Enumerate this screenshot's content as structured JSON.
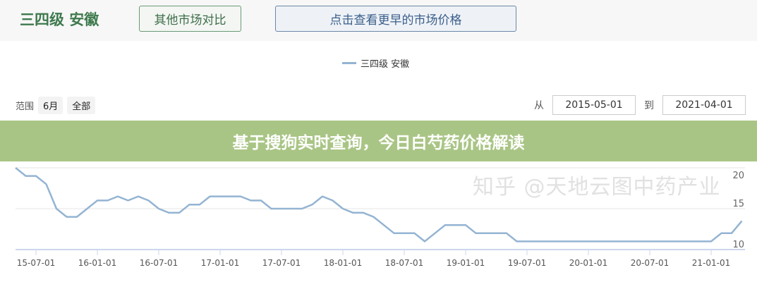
{
  "header": {
    "title": "三四级 安徽",
    "compare_button": "其他市场对比",
    "earlier_button": "点击查看更早的市场价格"
  },
  "controls": {
    "range_label": "范围",
    "range_options": [
      "6月",
      "全部"
    ],
    "from_label": "从",
    "from_value": "2015-05-01",
    "to_label": "到",
    "to_value": "2021-04-01"
  },
  "banner": {
    "text": "基于搜狗实时查询，今日白芍药价格解读"
  },
  "watermark": "知乎 @天地云图中药产业",
  "colors": {
    "line": "#94b4d2",
    "banner": "#a9c585",
    "title": "#3e7a4d"
  },
  "chart_data": {
    "type": "line",
    "legend_position": "top-center",
    "grid": true,
    "x_start": "2015-05-01",
    "x_interval": "monthly",
    "ylim": [
      10,
      20
    ],
    "y_ticks": [
      10,
      15,
      20
    ],
    "x_tick_labels": [
      "15-07-01",
      "16-01-01",
      "16-07-01",
      "17-01-01",
      "17-07-01",
      "18-01-01",
      "18-07-01",
      "19-01-01",
      "19-07-01",
      "20-01-01",
      "20-07-01",
      "21-01-01"
    ],
    "series": [
      {
        "name": "三四级 安徽",
        "values": [
          20,
          19,
          19,
          18,
          15,
          14,
          14,
          15,
          16,
          16,
          16.5,
          16,
          16.5,
          16,
          15,
          14.5,
          14.5,
          15.5,
          15.5,
          16.5,
          16.5,
          16.5,
          16.5,
          16,
          16,
          15,
          15,
          15,
          15,
          15.5,
          16.5,
          16,
          15,
          14.5,
          14.5,
          14,
          13,
          12,
          12,
          12,
          11,
          12,
          13,
          13,
          13,
          12,
          12,
          12,
          12,
          11,
          11,
          11,
          11,
          11,
          11,
          11,
          11,
          11,
          11,
          11,
          11,
          11,
          11,
          11,
          11,
          11,
          11,
          11,
          11,
          12,
          12,
          13.5
        ]
      }
    ]
  }
}
